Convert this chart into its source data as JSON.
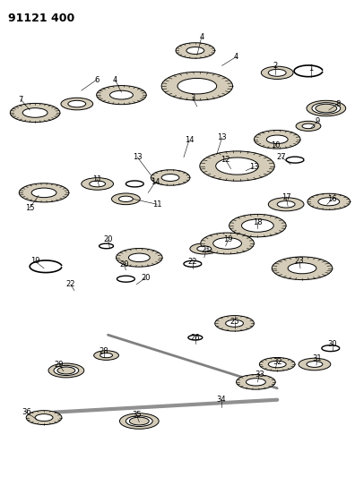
{
  "title": "91121 400",
  "background_color": "#ffffff",
  "line_color": "#000000",
  "gear_color": "#d4ccb8",
  "shaft_color": "#a0a0a0",
  "label_color": "#000000"
}
